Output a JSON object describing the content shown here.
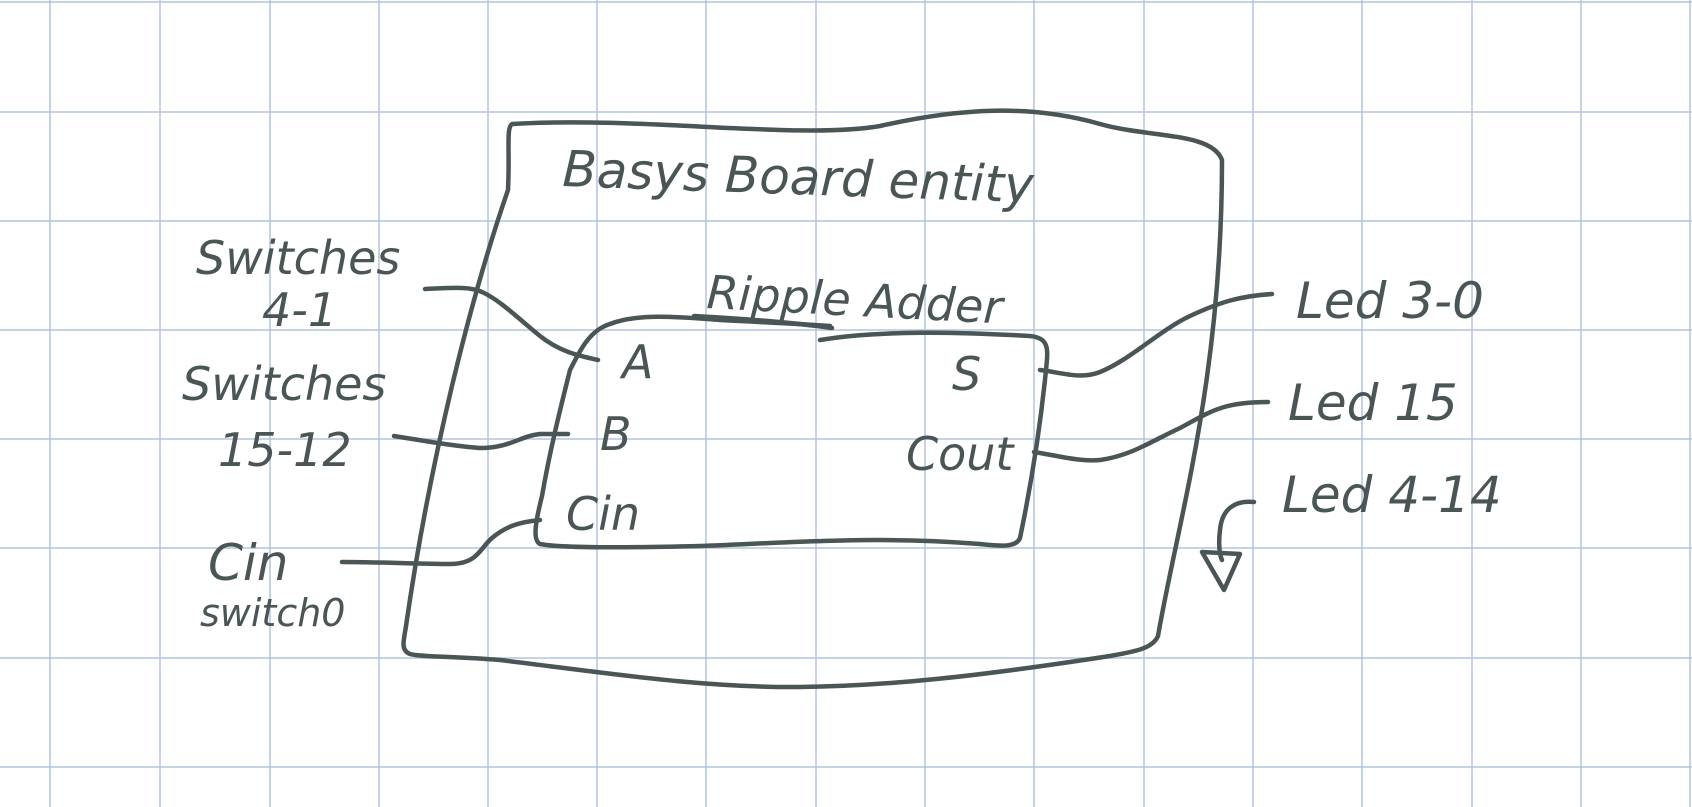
{
  "colors": {
    "paper": "#ffffff",
    "grid": "#b4c3de",
    "ink": "#4a5556"
  },
  "outer_entity": {
    "title": "Basys Board entity"
  },
  "inner_entity": {
    "title": "Ripple Adder",
    "ports": {
      "a": "A",
      "b": "B",
      "cin": "Cin",
      "s": "S",
      "cout": "Cout"
    }
  },
  "inputs": {
    "a": {
      "line1": "Switches",
      "line2": "4-1"
    },
    "b": {
      "line1": "Switches",
      "line2": "15-12"
    },
    "cin": {
      "line1": "Cin",
      "line2": "switch0"
    }
  },
  "outputs": {
    "s": "Led 3-0",
    "cout": "Led 15",
    "ground": "Led 4-14"
  }
}
